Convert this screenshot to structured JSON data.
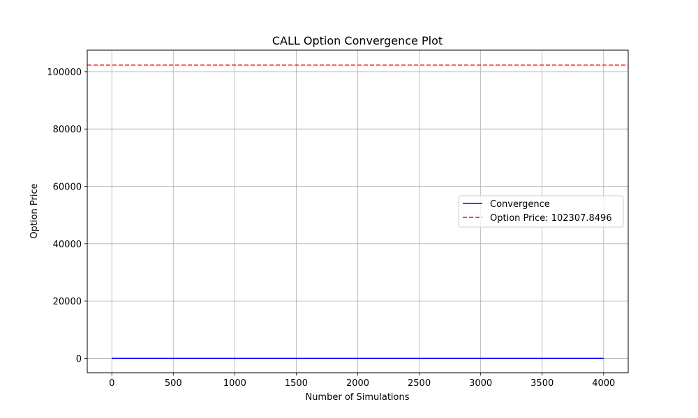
{
  "chart_data": {
    "type": "line",
    "title": "CALL Option Convergence Plot",
    "xlabel": "Number of Simulations",
    "ylabel": "Option Price",
    "xlim": [
      -200,
      4200
    ],
    "ylim": [
      -5000,
      107500
    ],
    "xticks": [
      0,
      500,
      1000,
      1500,
      2000,
      2500,
      3000,
      3500,
      4000
    ],
    "yticks": [
      0,
      20000,
      40000,
      60000,
      80000,
      100000
    ],
    "grid": true,
    "legend_position": "center-right",
    "series": [
      {
        "name": "Convergence",
        "color": "#0000ff",
        "style": "solid",
        "x": [
          0,
          4000
        ],
        "y": [
          0,
          0
        ]
      },
      {
        "name": "Option Price: 102307.8496",
        "color": "#ff0000",
        "style": "dashed",
        "horizontal_line": 102307.8496
      }
    ]
  }
}
